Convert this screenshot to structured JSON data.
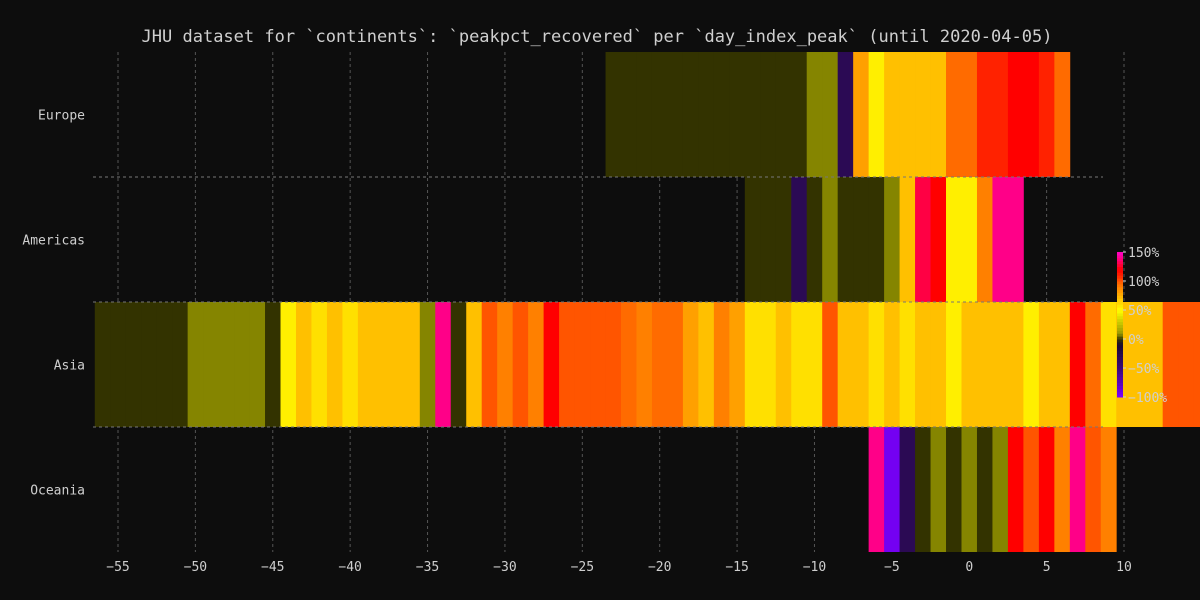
{
  "chart_data": {
    "type": "heatmap",
    "title": "JHU dataset for `continents`: `peakpct_recovered` per `day_index_peak` (until 2020-04-05)",
    "xlabel": "",
    "ylabel": "",
    "x_ticks": [
      -55,
      -50,
      -45,
      -40,
      -35,
      -30,
      -25,
      -20,
      -15,
      -10,
      -5,
      0,
      5,
      10
    ],
    "xlim": [
      -56.5,
      10
    ],
    "rows": [
      "Europe",
      "Americas",
      "Asia",
      "Oceania"
    ],
    "grid": true,
    "colorbar": {
      "ticks": [
        "150%",
        "100%",
        "50%",
        "0%",
        "-50%",
        "-100%"
      ],
      "tick_values": [
        150,
        100,
        50,
        0,
        -50,
        -100
      ],
      "range": [
        -100,
        150
      ],
      "placement": "right"
    },
    "colors": {
      "background": "#0d0d0d",
      "text": "#cfcfcf",
      "grid": "#555555"
    },
    "series": [
      {
        "row": "Europe",
        "x_start": -23.5,
        "values": [
          0,
          0,
          0,
          0,
          0,
          0,
          0,
          0,
          0,
          0,
          0,
          0,
          0,
          8,
          8,
          -30,
          80,
          55,
          70,
          70,
          70,
          70,
          95,
          95,
          110,
          110,
          120,
          120,
          110,
          95
        ]
      },
      {
        "row": "Americas",
        "x_start": -14.5,
        "values": [
          0,
          0,
          0,
          -30,
          0,
          8,
          0,
          0,
          0,
          8,
          70,
          130,
          120,
          55,
          55,
          90,
          140,
          140
        ]
      },
      {
        "row": "Asia",
        "x_start": -56.5,
        "values": [
          0,
          0,
          0,
          0,
          0,
          0,
          8,
          8,
          8,
          8,
          8,
          0,
          55,
          70,
          60,
          70,
          60,
          70,
          70,
          70,
          70,
          8,
          140,
          0,
          70,
          100,
          90,
          100,
          90,
          120,
          100,
          100,
          100,
          100,
          95,
          90,
          95,
          95,
          80,
          70,
          90,
          80,
          60,
          60,
          70,
          60,
          60,
          100,
          70,
          70,
          60,
          70,
          60,
          70,
          70,
          55,
          70,
          70,
          70,
          70,
          55,
          70,
          70,
          120,
          95,
          60,
          70,
          70,
          70,
          100,
          100,
          100,
          95,
          55
        ]
      },
      {
        "row": "Oceania",
        "x_start": -6.5,
        "values": [
          140,
          -95,
          -30,
          0,
          8,
          0,
          8,
          0,
          8,
          120,
          100,
          120,
          90,
          140,
          100,
          90
        ]
      }
    ]
  }
}
